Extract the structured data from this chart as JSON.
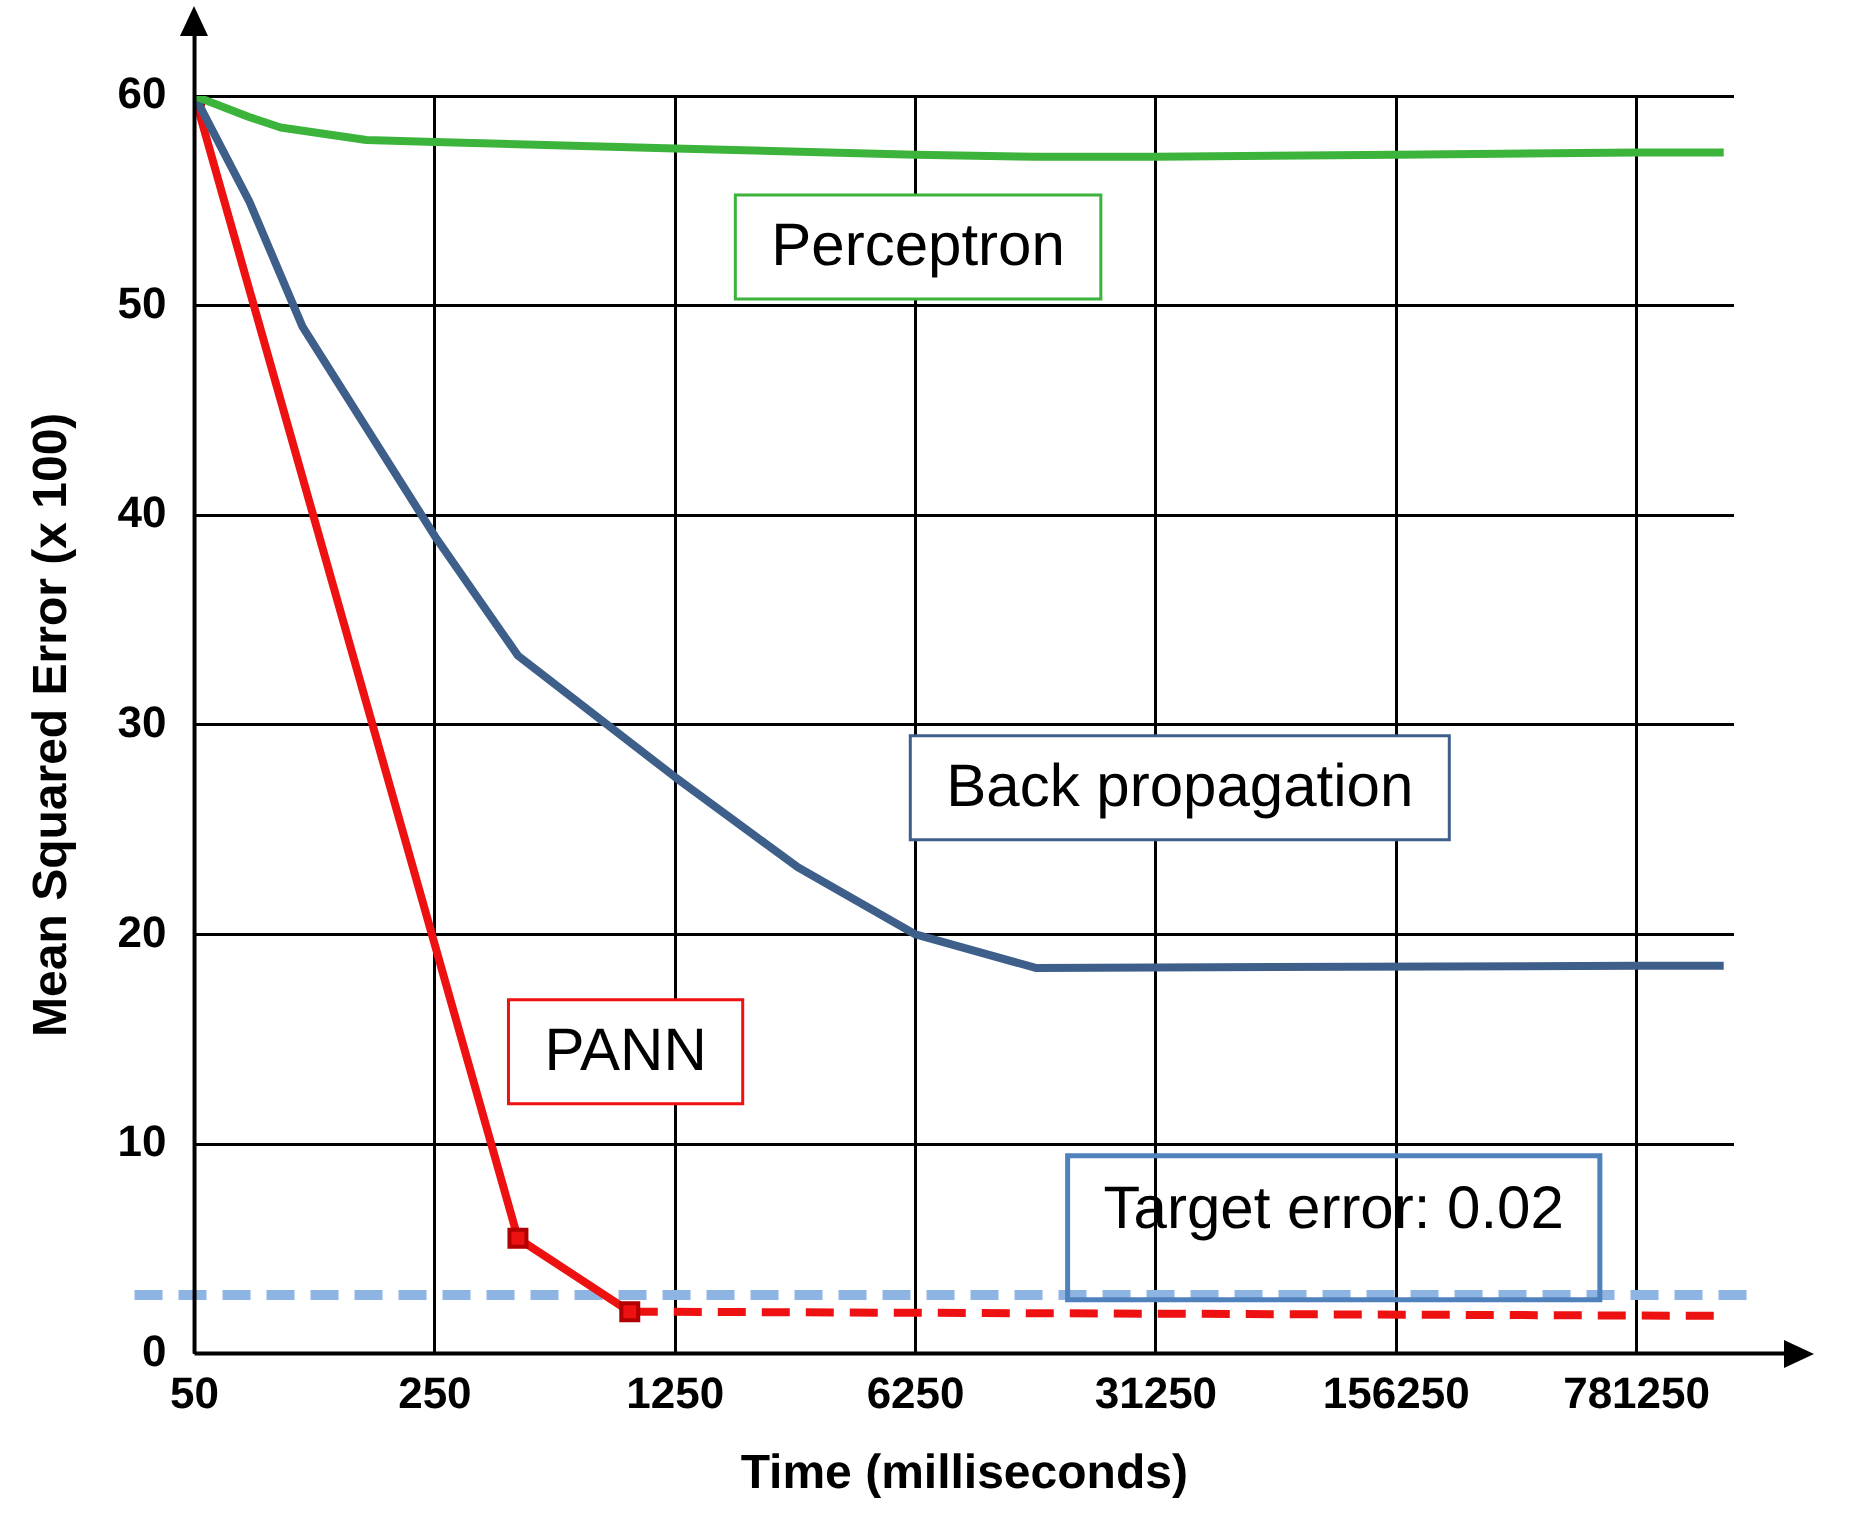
{
  "chart_data": {
    "type": "line",
    "xlabel": "Time (milliseconds)",
    "ylabel": "Mean Squared Error (x 100)",
    "log": "x",
    "xlim": [
      50,
      1500000
    ],
    "xticks": [
      50,
      250,
      1250,
      6250,
      31250,
      156250,
      781250
    ],
    "ylim": [
      0,
      60
    ],
    "yticks": [
      0,
      10,
      20,
      30,
      40,
      50,
      60
    ],
    "grid": true,
    "legend": false,
    "marker": "none",
    "line_style": "solid",
    "series": [
      {
        "name": "Perceptron",
        "color": "#3cb43c",
        "x": [
          50,
          72,
          89,
          158,
          250,
          1250,
          6250,
          13975,
          31250,
          156250,
          781250,
          1400000
        ],
        "values": [
          60,
          59,
          58.5,
          57.9,
          57.8,
          57.5,
          57.2,
          57.1,
          57.1,
          57.2,
          57.3,
          57.3
        ]
      },
      {
        "name": "Back propagation",
        "color": "#3e5f8a",
        "x": [
          50,
          72,
          103,
          250,
          436,
          1250,
          2842,
          6250,
          13975,
          781250,
          1400000
        ],
        "values": [
          60,
          55,
          49,
          39,
          33.3,
          27.5,
          23.2,
          20,
          18.4,
          18.5,
          18.5
        ]
      },
      {
        "name": "PANN",
        "color": "#ee1111",
        "marker": "square",
        "x": [
          50,
          436,
          922
        ],
        "values": [
          60,
          5.5,
          2.0
        ]
      },
      {
        "color": "#ee1111",
        "line_style": "dashed",
        "x": [
          922,
          1400000
        ],
        "values": [
          2.0,
          1.8
        ]
      }
    ],
    "annotations": [
      "Target error: 0.02"
    ],
    "ref_lines": [
      {
        "axis": "y",
        "value": 2.8,
        "color": "#8eb4e3",
        "line_style": "dashed"
      }
    ]
  }
}
